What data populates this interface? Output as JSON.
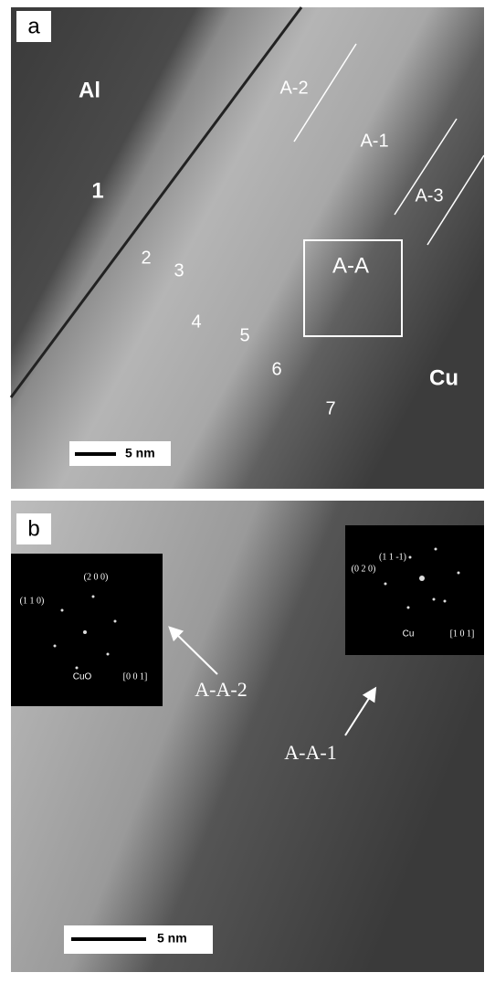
{
  "panel_a": {
    "label": "a",
    "regions": [
      "Al",
      "Cu"
    ],
    "positions": [
      "1",
      "2",
      "3",
      "4",
      "5",
      "6",
      "7"
    ],
    "zones": [
      "A-1",
      "A-2",
      "A-3",
      "A-A"
    ],
    "scale_bar": "5 nm"
  },
  "panel_b": {
    "label": "b",
    "inset_left": {
      "spots": [
        "(2 0 0)",
        "(1 1 0)"
      ],
      "phase": "CuO",
      "zone_axis": "[0 0 1]"
    },
    "inset_right": {
      "spots": [
        "(1 1 -1)",
        "(0 2 0)"
      ],
      "phase": "Cu",
      "zone_axis": "[1 0 1]"
    },
    "arrows": [
      "A-A-2",
      "A-A-1"
    ],
    "scale_bar": "5 nm"
  }
}
